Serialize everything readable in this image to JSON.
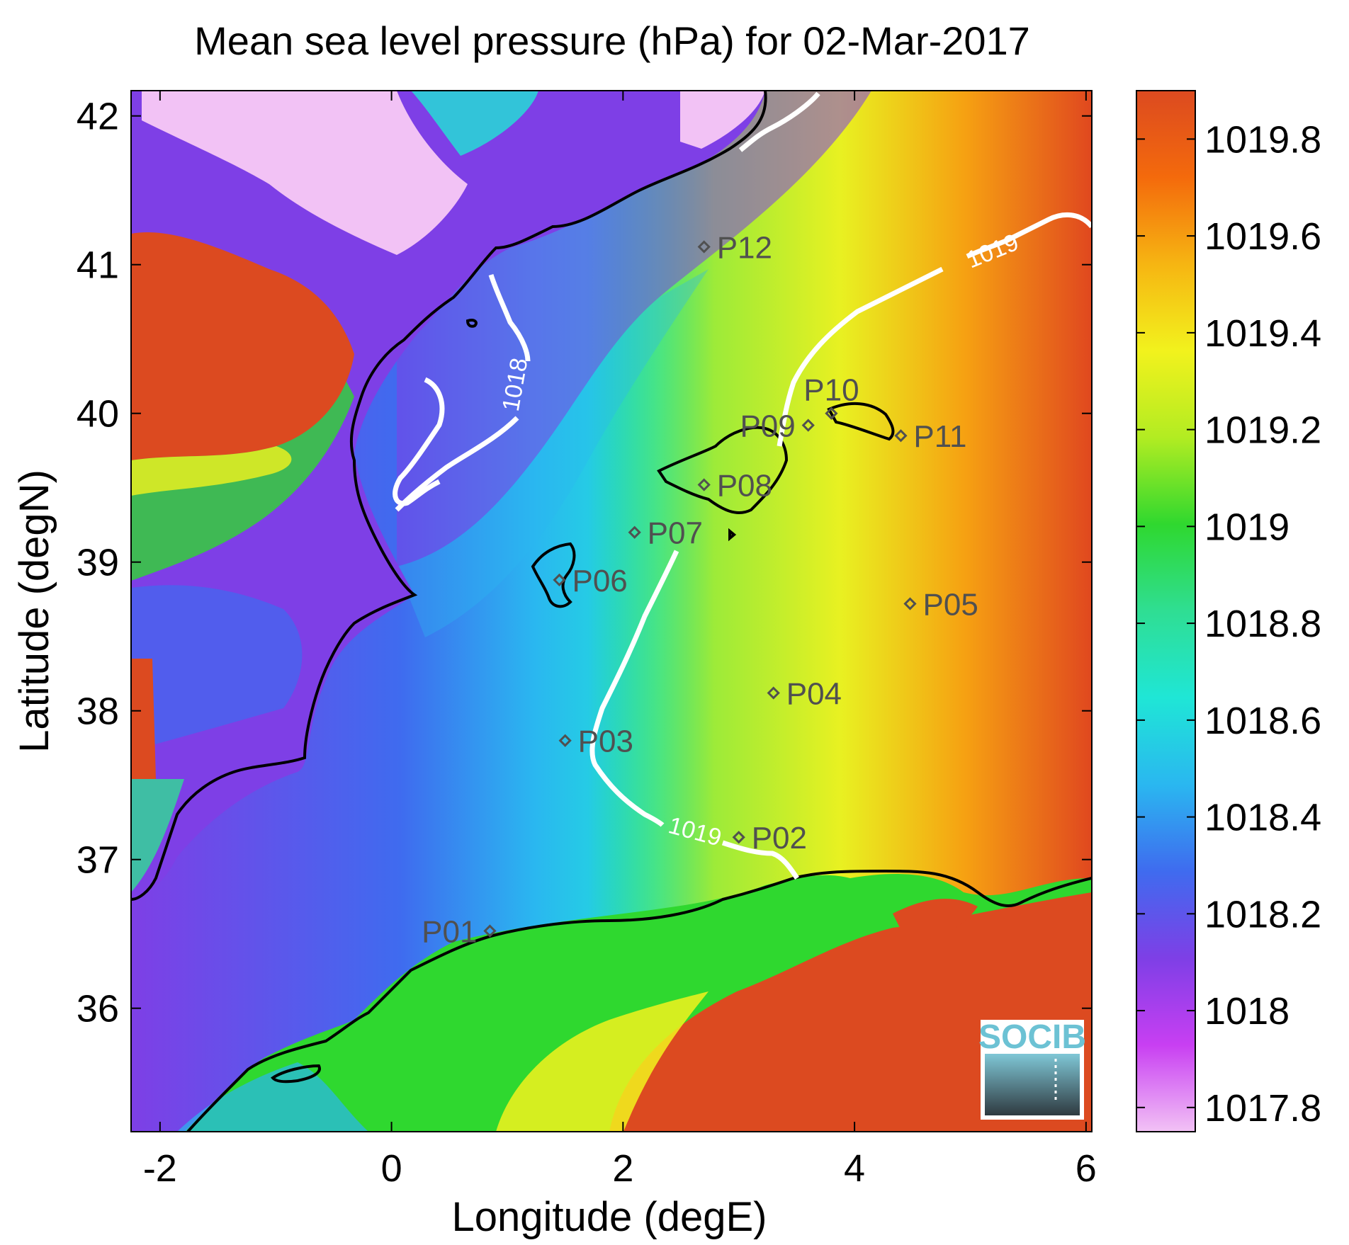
{
  "title": "Mean sea level pressure (hPa) for 02-Mar-2017",
  "xaxis": {
    "label": "Longitude (degE)",
    "range": [
      -2.25,
      6.05
    ],
    "ticks": [
      -2,
      0,
      2,
      4,
      6
    ],
    "tick_labels": [
      "-2",
      "0",
      "2",
      "4",
      "6"
    ]
  },
  "yaxis": {
    "label": "Latitude (degN)",
    "range": [
      35.17,
      42.17
    ],
    "ticks": [
      36,
      37,
      38,
      39,
      40,
      41,
      42
    ],
    "tick_labels": [
      "36",
      "37",
      "38",
      "39",
      "40",
      "41",
      "42"
    ]
  },
  "colorbar": {
    "range": [
      1017.75,
      1019.9
    ],
    "ticks": [
      1017.8,
      1018,
      1018.2,
      1018.4,
      1018.6,
      1018.8,
      1019,
      1019.2,
      1019.4,
      1019.6,
      1019.8
    ],
    "tick_labels": [
      "1017.8",
      "1018",
      "1018.2",
      "1018.4",
      "1018.6",
      "1018.8",
      "1019",
      "1019.2",
      "1019.4",
      "1019.6",
      "1019.8"
    ],
    "colormap": [
      "#f2c2f5",
      "#c83ff2",
      "#7e3fe6",
      "#3f6bef",
      "#2ab7f0",
      "#1fe6d6",
      "#2fde93",
      "#2fd82f",
      "#b2ec22",
      "#f2f21d",
      "#f6b512",
      "#f46a0c",
      "#dc4a20"
    ]
  },
  "stations": [
    {
      "name": "P01",
      "lon": 0.85,
      "lat": 36.52,
      "label_side": "left"
    },
    {
      "name": "P02",
      "lon": 3.0,
      "lat": 37.15,
      "label_side": "right"
    },
    {
      "name": "P03",
      "lon": 1.5,
      "lat": 37.8,
      "label_side": "right"
    },
    {
      "name": "P04",
      "lon": 3.3,
      "lat": 38.12,
      "label_side": "right"
    },
    {
      "name": "P05",
      "lon": 4.48,
      "lat": 38.72,
      "label_side": "right"
    },
    {
      "name": "P06",
      "lon": 1.45,
      "lat": 38.88,
      "label_side": "right"
    },
    {
      "name": "P07",
      "lon": 2.1,
      "lat": 39.2,
      "label_side": "right"
    },
    {
      "name": "P08",
      "lon": 2.7,
      "lat": 39.52,
      "label_side": "right"
    },
    {
      "name": "P09",
      "lon": 3.6,
      "lat": 39.92,
      "label_side": "left"
    },
    {
      "name": "P10",
      "lon": 3.8,
      "lat": 40.0,
      "label_side": "above"
    },
    {
      "name": "P11",
      "lon": 4.4,
      "lat": 39.85,
      "label_side": "right"
    },
    {
      "name": "P12",
      "lon": 2.7,
      "lat": 41.12,
      "label_side": "right"
    }
  ],
  "contours": [
    {
      "level": "1018",
      "label": "1018",
      "color": "#ffffff"
    },
    {
      "level": "1019",
      "label": "1019",
      "color": "#ffffff"
    }
  ],
  "logo": {
    "text": "SOCIB",
    "color": "#6cc2d4"
  }
}
